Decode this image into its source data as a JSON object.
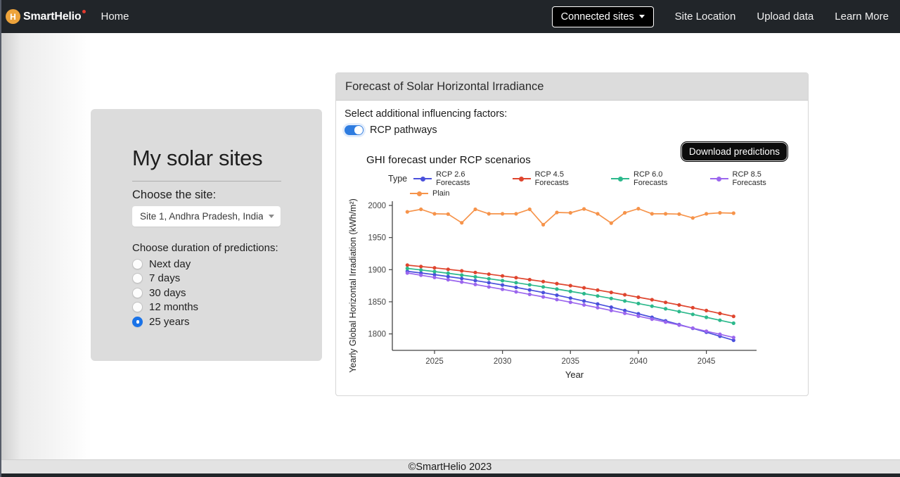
{
  "navbar": {
    "logo_letter": "H",
    "brand": "SmartHelio",
    "home": "Home",
    "connected_sites": "Connected sites",
    "site_location": "Site Location",
    "upload_data": "Upload data",
    "learn_more": "Learn More"
  },
  "sidebar": {
    "title": "My solar sites",
    "site_label": "Choose the site:",
    "site_selected": "Site 1, Andhra Pradesh, India",
    "duration_label": "Choose duration of predictions:",
    "durations": [
      {
        "label": "Next day",
        "selected": false
      },
      {
        "label": "7 days",
        "selected": false
      },
      {
        "label": "30 days",
        "selected": false
      },
      {
        "label": "12 months",
        "selected": false
      },
      {
        "label": "25 years",
        "selected": true
      }
    ]
  },
  "panel": {
    "header": "Forecast of Solar Horizontal Irradiance",
    "factors_label": "Select additional influencing factors:",
    "toggle_label": "RCP pathways",
    "toggle_on": true,
    "download_label": "Download predictions"
  },
  "chart_data": {
    "type": "line",
    "title": "GHI forecast under RCP scenarios",
    "xlabel": "Year",
    "ylabel": "Yearly Global Horizontal Irradiation (kWh/m²)",
    "legend_title": "Type",
    "legend_position": "top",
    "grid": false,
    "x": [
      2023,
      2024,
      2025,
      2026,
      2027,
      2028,
      2029,
      2030,
      2031,
      2032,
      2033,
      2034,
      2035,
      2036,
      2037,
      2038,
      2039,
      2040,
      2041,
      2042,
      2043,
      2044,
      2045,
      2046,
      2047
    ],
    "xticks": [
      2025,
      2030,
      2035,
      2040,
      2045
    ],
    "yticks": [
      1800,
      1850,
      1900,
      1950,
      2000
    ],
    "ylim": [
      1775,
      2012
    ],
    "series": [
      {
        "name": "RCP 2.6 Forecasts",
        "color": "#4a50dc",
        "values": [
          1897.5,
          1894.9,
          1892.2,
          1889.3,
          1886.3,
          1883.0,
          1879.7,
          1876.1,
          1872.4,
          1868.5,
          1864.4,
          1860.2,
          1855.8,
          1851.2,
          1846.5,
          1841.6,
          1836.5,
          1831.3,
          1825.9,
          1820.3,
          1814.6,
          1808.7,
          1802.6,
          1796.4,
          1790.0
        ]
      },
      {
        "name": "RCP 4.5 Forecasts",
        "color": "#df452e",
        "values": [
          1907.0,
          1904.9,
          1902.8,
          1900.5,
          1898.1,
          1895.6,
          1893.0,
          1890.3,
          1887.5,
          1884.5,
          1881.5,
          1878.3,
          1875.1,
          1871.7,
          1868.2,
          1864.6,
          1860.9,
          1857.1,
          1853.2,
          1849.1,
          1845.0,
          1840.7,
          1836.4,
          1831.9,
          1827.3
        ]
      },
      {
        "name": "RCP 6.0 Forecasts",
        "color": "#2cb98c",
        "values": [
          1902.0,
          1899.6,
          1897.0,
          1894.4,
          1891.6,
          1888.8,
          1885.9,
          1882.9,
          1879.7,
          1876.5,
          1873.2,
          1869.8,
          1866.3,
          1862.7,
          1859.0,
          1855.2,
          1851.3,
          1847.3,
          1843.2,
          1839.1,
          1834.8,
          1830.4,
          1825.9,
          1821.3,
          1816.6
        ]
      },
      {
        "name": "RCP 8.5 Forecasts",
        "color": "#9b66ee",
        "values": [
          1894.8,
          1891.4,
          1887.9,
          1884.3,
          1880.7,
          1877.0,
          1873.2,
          1869.4,
          1865.5,
          1861.6,
          1857.6,
          1853.5,
          1849.3,
          1845.1,
          1840.8,
          1836.5,
          1832.1,
          1827.6,
          1823.0,
          1818.4,
          1813.8,
          1809.0,
          1804.2,
          1799.4,
          1794.4
        ]
      },
      {
        "name": "Plain",
        "color": "#f6934a",
        "values": [
          1990,
          1994,
          1987,
          1986.5,
          1973,
          1994,
          1987,
          1987,
          1987,
          1994,
          1970,
          1989,
          1988.5,
          1994.5,
          1987,
          1972.5,
          1988.5,
          1995,
          1987,
          1987,
          1986.5,
          1980.5,
          1987,
          1988.5,
          1988
        ]
      }
    ]
  },
  "footer": {
    "copyright": "©SmartHelio 2023"
  }
}
